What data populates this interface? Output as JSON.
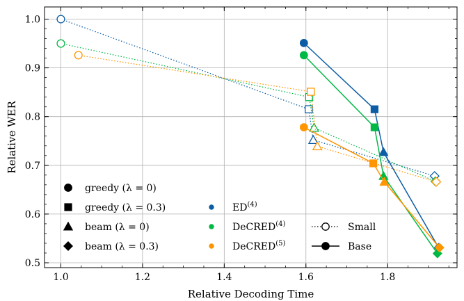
{
  "chart_data": {
    "type": "line",
    "xlabel": "Relative Decoding Time",
    "ylabel": "Relative WER",
    "xlim": [
      0.96,
      1.97
    ],
    "ylim": [
      0.49,
      1.025
    ],
    "xticks": [
      1.0,
      1.2,
      1.4,
      1.6,
      1.8
    ],
    "yticks": [
      0.5,
      0.6,
      0.7,
      0.8,
      0.9,
      1.0
    ],
    "xtick_labels": [
      "1.0",
      "1.2",
      "1.4",
      "1.6",
      "1.8"
    ],
    "ytick_labels": [
      "0.5",
      "0.6",
      "0.7",
      "0.8",
      "0.9",
      "1.0"
    ],
    "grid": true,
    "series": [
      {
        "name": "ED(4)",
        "size": "Small",
        "color": "#0C5DA5",
        "points": [
          {
            "x": 1.0,
            "y": 1.0,
            "marker": "circle"
          },
          {
            "x": 1.607,
            "y": 0.815,
            "marker": "square"
          },
          {
            "x": 1.618,
            "y": 0.752,
            "marker": "triangle"
          },
          {
            "x": 1.915,
            "y": 0.678,
            "marker": "diamond"
          }
        ]
      },
      {
        "name": "DeCRED(4)",
        "size": "Small",
        "color": "#00B945",
        "points": [
          {
            "x": 1.0,
            "y": 0.95,
            "marker": "circle"
          },
          {
            "x": 1.608,
            "y": 0.84,
            "marker": "square"
          },
          {
            "x": 1.62,
            "y": 0.777,
            "marker": "triangle"
          },
          {
            "x": 1.917,
            "y": 0.667,
            "marker": "diamond"
          }
        ]
      },
      {
        "name": "DeCRED(5)",
        "size": "Small",
        "color": "#FF9500",
        "points": [
          {
            "x": 1.043,
            "y": 0.926,
            "marker": "circle"
          },
          {
            "x": 1.612,
            "y": 0.851,
            "marker": "square"
          },
          {
            "x": 1.628,
            "y": 0.739,
            "marker": "triangle"
          },
          {
            "x": 1.919,
            "y": 0.666,
            "marker": "diamond"
          }
        ]
      },
      {
        "name": "ED(4)",
        "size": "Base",
        "color": "#0C5DA5",
        "points": [
          {
            "x": 1.595,
            "y": 0.951,
            "marker": "circle"
          },
          {
            "x": 1.768,
            "y": 0.815,
            "marker": "square"
          },
          {
            "x": 1.79,
            "y": 0.727,
            "marker": "triangle"
          },
          {
            "x": 1.925,
            "y": 0.531,
            "marker": "diamond"
          }
        ]
      },
      {
        "name": "DeCRED(4)",
        "size": "Base",
        "color": "#00B945",
        "points": [
          {
            "x": 1.595,
            "y": 0.926,
            "marker": "circle"
          },
          {
            "x": 1.768,
            "y": 0.778,
            "marker": "square"
          },
          {
            "x": 1.79,
            "y": 0.678,
            "marker": "triangle"
          },
          {
            "x": 1.922,
            "y": 0.519,
            "marker": "diamond"
          }
        ]
      },
      {
        "name": "DeCRED(5)",
        "size": "Base",
        "color": "#FF9500",
        "points": [
          {
            "x": 1.595,
            "y": 0.778,
            "marker": "circle"
          },
          {
            "x": 1.765,
            "y": 0.704,
            "marker": "square"
          },
          {
            "x": 1.792,
            "y": 0.666,
            "marker": "triangle"
          },
          {
            "x": 1.927,
            "y": 0.531,
            "marker": "diamond"
          }
        ]
      }
    ],
    "legend": {
      "placement": "bottom-left",
      "markers": [
        {
          "marker": "circle",
          "label": "greedy (λ = 0)"
        },
        {
          "marker": "square",
          "label": "greedy (λ = 0.3)"
        },
        {
          "marker": "triangle",
          "label": "beam (λ = 0)"
        },
        {
          "marker": "diamond",
          "label": "beam (λ = 0.3)"
        }
      ],
      "models": [
        {
          "label": "ED",
          "sup": "(4)",
          "color": "#0C5DA5"
        },
        {
          "label": "DeCRED",
          "sup": "(4)",
          "color": "#00B945"
        },
        {
          "label": "DeCRED",
          "sup": "(5)",
          "color": "#FF9500"
        }
      ],
      "sizes": [
        {
          "label": "Small",
          "style": "dotted-open"
        },
        {
          "label": "Base",
          "style": "solid-filled"
        }
      ]
    }
  }
}
